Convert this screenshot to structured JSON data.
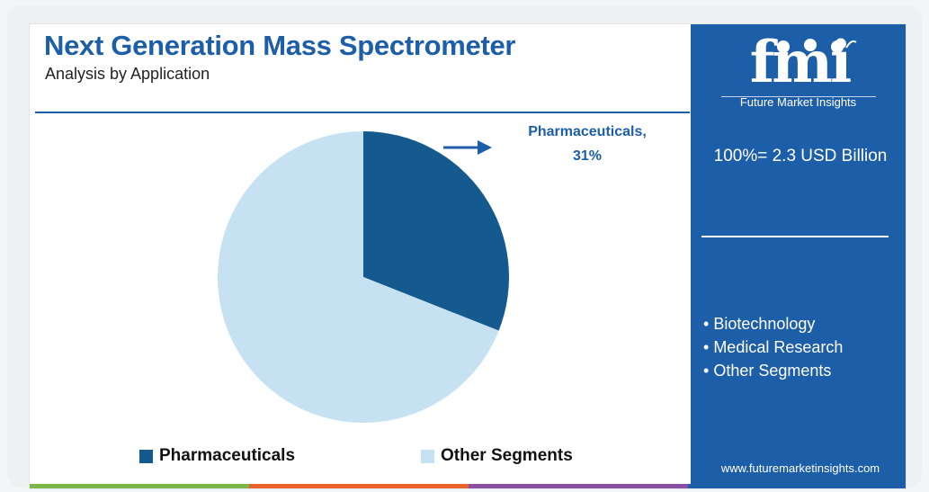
{
  "chart_data": {
    "type": "pie",
    "title": "Next Generation Mass Spectrometer",
    "subtitle": "Analysis by Application",
    "slices": [
      {
        "label": "Pharmaceuticals",
        "value": 31,
        "color": "#155a8f"
      },
      {
        "label": "Other Segments",
        "value": 69,
        "color": "#c6e1f2"
      }
    ],
    "slice_label": {
      "line1": "Pharmaceuticals,",
      "line2": "31%"
    },
    "legend": [
      {
        "label": "Pharmaceuticals",
        "color": "#155a8f"
      },
      {
        "label": "Other Segments",
        "color": "#c6e1f2"
      }
    ],
    "legend_position": "bottom"
  },
  "panel": {
    "logo_text": "fmi",
    "logo_subtitle": "Future Market Insights",
    "total": "100%= 2.3 USD Billion",
    "other_segments": [
      "Biotechnology",
      "Medical Research",
      "Other Segments"
    ],
    "website": "www.futuremarketinsights.com",
    "color": "#1d5ea8"
  },
  "colors": {
    "title": "#1d5ea8",
    "bottom_bar": [
      "#7ab648",
      "#e8622a",
      "#8a4fa0",
      "#1d5ea8"
    ]
  }
}
